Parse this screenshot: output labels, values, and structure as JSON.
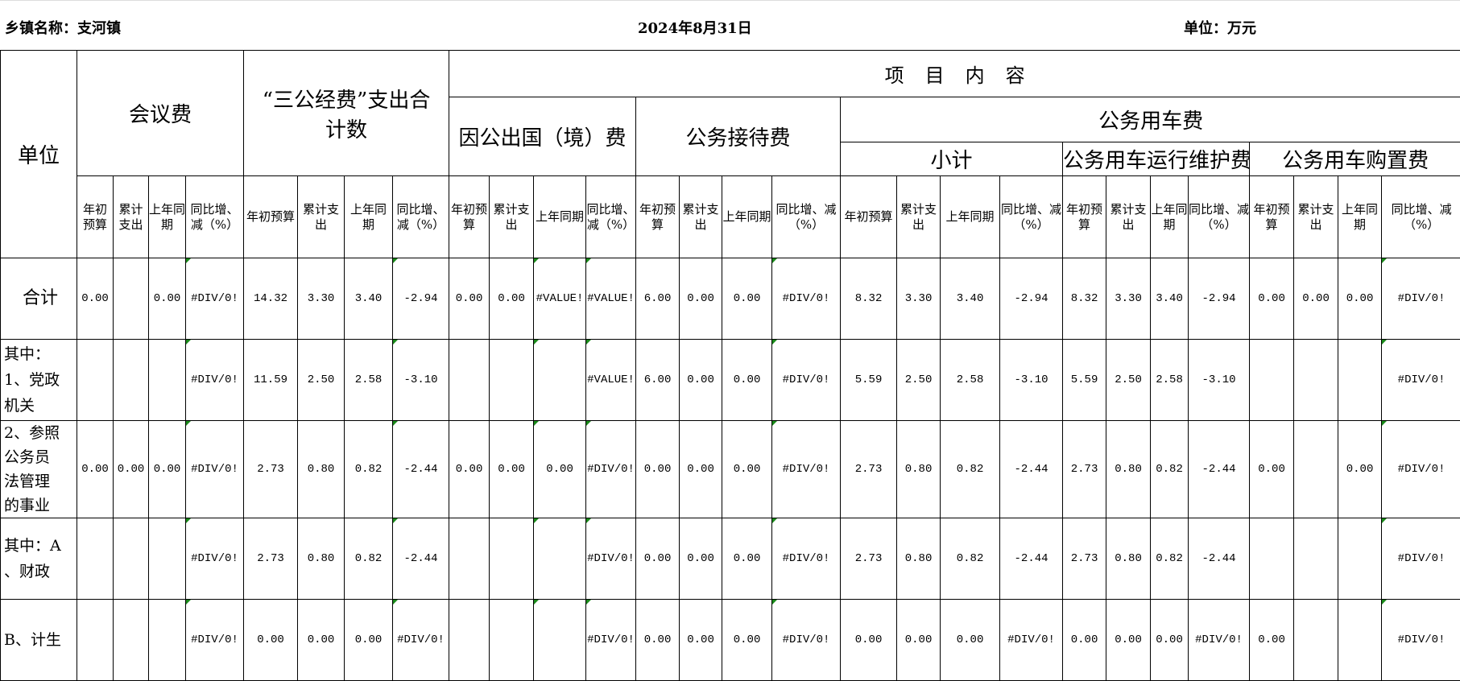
{
  "header": {
    "town": "乡镇名称：支河镇",
    "date": "2024年8月31日",
    "unit": "单位：万元"
  },
  "table": {
    "unit_col": "单位",
    "meeting": "会议费",
    "three_total": "“三公经费”支出合计数",
    "project": "项　目　内　容",
    "abroad": "因公出国（境）费",
    "reception": "公务接待费",
    "car": "公务用车费",
    "car_subtotal": "小计",
    "car_maintain": "公务用车运行维护费",
    "car_purchase": "公务用车购置费",
    "subheaders": [
      "年初预算",
      "累计支出",
      "上年同期",
      "同比增、减（%）"
    ],
    "rows": [
      {
        "label": "合计",
        "cells": [
          "0.00",
          "",
          "0.00",
          "#DIV/0!",
          "14.32",
          "3.30",
          "3.40",
          "-2.94",
          "0.00",
          "0.00",
          "#VALUE!",
          "#VALUE!",
          "6.00",
          "0.00",
          "0.00",
          "#DIV/0!",
          "8.32",
          "3.30",
          "3.40",
          "-2.94",
          "8.32",
          "3.30",
          "3.40",
          "-2.94",
          "0.00",
          "0.00",
          "0.00",
          "#DIV/0!"
        ]
      },
      {
        "label": "其中：\n1、党政\n机关",
        "cells": [
          "",
          "",
          "",
          "#DIV/0!",
          "11.59",
          "2.50",
          "2.58",
          "-3.10",
          "",
          "",
          "",
          "#VALUE!",
          "6.00",
          "0.00",
          "0.00",
          "#DIV/0!",
          "5.59",
          "2.50",
          "2.58",
          "-3.10",
          "5.59",
          "2.50",
          "2.58",
          "-3.10",
          "",
          "",
          "",
          "#DIV/0!"
        ]
      },
      {
        "label": "2、参照\n公务员\n法管理\n的事业",
        "cells": [
          "0.00",
          "0.00",
          "0.00",
          "#DIV/0!",
          "2.73",
          "0.80",
          "0.82",
          "-2.44",
          "0.00",
          "0.00",
          "0.00",
          "#DIV/0!",
          "0.00",
          "0.00",
          "0.00",
          "#DIV/0!",
          "2.73",
          "0.80",
          "0.82",
          "-2.44",
          "2.73",
          "0.80",
          "0.82",
          "-2.44",
          "0.00",
          "",
          "0.00",
          "#DIV/0!"
        ]
      },
      {
        "label": "其中：A\n、财政",
        "cells": [
          "",
          "",
          "",
          "#DIV/0!",
          "2.73",
          "0.80",
          "0.82",
          "-2.44",
          "",
          "",
          "",
          "#DIV/0!",
          "0.00",
          "0.00",
          "0.00",
          "#DIV/0!",
          "2.73",
          "0.80",
          "0.82",
          "-2.44",
          "2.73",
          "0.80",
          "0.82",
          "-2.44",
          "",
          "",
          "",
          "#DIV/0!"
        ]
      },
      {
        "label": "B、计生",
        "cells": [
          "",
          "",
          "",
          "#DIV/0!",
          "0.00",
          "0.00",
          "0.00",
          "#DIV/0!",
          "",
          "",
          "",
          "#DIV/0!",
          "0.00",
          "0.00",
          "0.00",
          "#DIV/0!",
          "0.00",
          "0.00",
          "0.00",
          "#DIV/0!",
          "0.00",
          "0.00",
          "0.00",
          "#DIV/0!",
          "0.00",
          "",
          "",
          "#DIV/0!"
        ]
      }
    ]
  },
  "colors": {
    "grid": "#000000",
    "comment_marker": "#1a8a1a"
  }
}
